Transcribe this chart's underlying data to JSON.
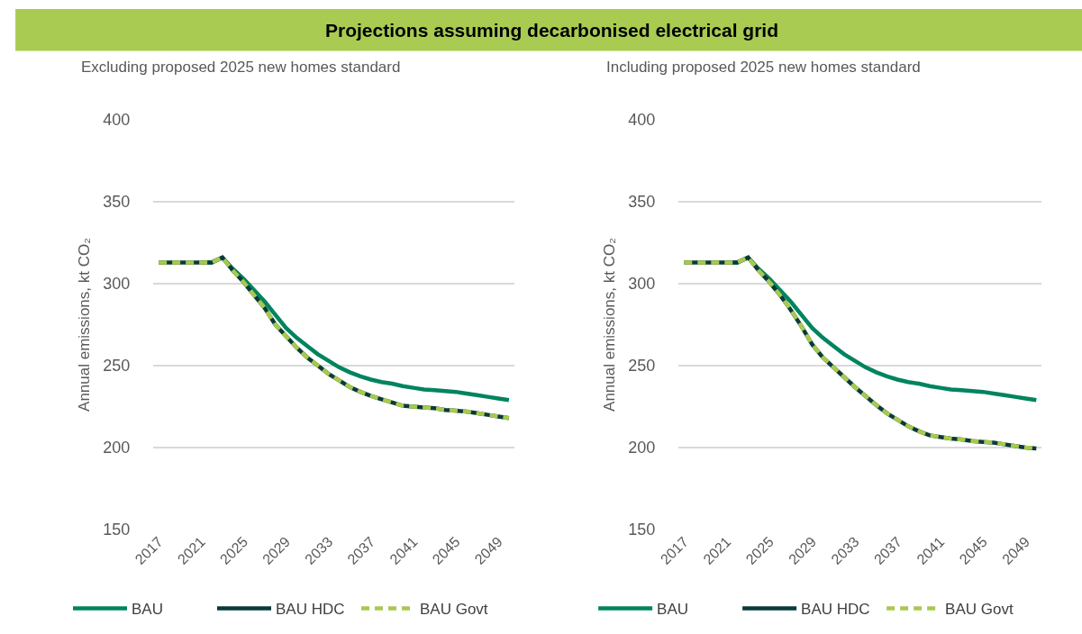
{
  "chart_data": [
    {
      "type": "line",
      "title": "Projections assuming decarbonised electrical grid",
      "subtitle": "Excluding proposed 2025 new homes standard",
      "ylabel": "Annual emissions, kt CO₂",
      "x": [
        2017,
        2018,
        2019,
        2020,
        2021,
        2022,
        2023,
        2024,
        2025,
        2026,
        2027,
        2028,
        2029,
        2030,
        2031,
        2032,
        2033,
        2034,
        2035,
        2036,
        2037,
        2038,
        2039,
        2040,
        2041,
        2042,
        2043,
        2044,
        2045,
        2046,
        2047,
        2048,
        2049,
        2050
      ],
      "xlim": [
        2016.5,
        2050.5
      ],
      "xticks": [
        2017,
        2021,
        2025,
        2029,
        2033,
        2037,
        2041,
        2045,
        2049
      ],
      "ylim": [
        150,
        400
      ],
      "yticks": [
        150,
        200,
        250,
        300,
        350,
        400
      ],
      "grid": "y",
      "legend": "bottom",
      "marker": "none",
      "series": [
        {
          "name": "BAU",
          "color": "#00845f",
          "line_style": "solid",
          "values": [
            null,
            null,
            null,
            null,
            313,
            313,
            316,
            309,
            303,
            296,
            289,
            281,
            273,
            267,
            262,
            257,
            253,
            249,
            246,
            243.5,
            241.5,
            240,
            239,
            237.5,
            236.5,
            235.5,
            235,
            234.5,
            234,
            233,
            232,
            231,
            230,
            229
          ]
        },
        {
          "name": "BAU HDC",
          "color": "#0a3a3a",
          "line_style": "solid",
          "values": [
            313,
            313,
            313,
            313,
            313,
            313,
            316,
            308,
            301,
            293,
            285,
            275,
            268,
            261,
            255,
            250,
            245,
            241,
            237,
            234,
            231.5,
            229.5,
            227.5,
            225.5,
            225,
            224.5,
            224,
            223,
            222.5,
            222,
            221,
            220,
            219,
            218
          ]
        },
        {
          "name": "BAU Govt",
          "color": "#a8c94f",
          "line_style": "dashed",
          "values": [
            313,
            313,
            313,
            313,
            313,
            313,
            316,
            308,
            301,
            293,
            285,
            275,
            268,
            261,
            255,
            250,
            245,
            241,
            237,
            234,
            231.5,
            229.5,
            227.5,
            225.5,
            225,
            224.5,
            224,
            223,
            222.5,
            222,
            221,
            220,
            219,
            218
          ]
        }
      ]
    },
    {
      "type": "line",
      "subtitle": "Including proposed 2025 new homes standard",
      "ylabel": "Annual emissions, kt CO₂",
      "x": [
        2017,
        2018,
        2019,
        2020,
        2021,
        2022,
        2023,
        2024,
        2025,
        2026,
        2027,
        2028,
        2029,
        2030,
        2031,
        2032,
        2033,
        2034,
        2035,
        2036,
        2037,
        2038,
        2039,
        2040,
        2041,
        2042,
        2043,
        2044,
        2045,
        2046,
        2047,
        2048,
        2049,
        2050
      ],
      "xlim": [
        2016.5,
        2050.5
      ],
      "xticks": [
        2017,
        2021,
        2025,
        2029,
        2033,
        2037,
        2041,
        2045,
        2049
      ],
      "ylim": [
        150,
        400
      ],
      "yticks": [
        150,
        200,
        250,
        300,
        350,
        400
      ],
      "grid": "y",
      "legend": "bottom",
      "marker": "none",
      "series": [
        {
          "name": "BAU",
          "color": "#00845f",
          "line_style": "solid",
          "values": [
            null,
            null,
            null,
            null,
            313,
            313,
            316,
            309,
            303,
            296,
            289,
            281,
            273,
            267,
            262,
            257,
            253,
            249,
            246,
            243.5,
            241.5,
            240,
            239,
            237.5,
            236.5,
            235.5,
            235,
            234.5,
            234,
            233,
            232,
            231,
            230,
            229
          ]
        },
        {
          "name": "BAU HDC",
          "color": "#0a3a3a",
          "line_style": "solid",
          "values": [
            313,
            313,
            313,
            313,
            313,
            313,
            316,
            308,
            301,
            293,
            284,
            274,
            263,
            255,
            249,
            243,
            237,
            231.5,
            226,
            221,
            217,
            213,
            210,
            207.5,
            206.5,
            205.5,
            205,
            204,
            203.5,
            203,
            202,
            201,
            200,
            199.5
          ]
        },
        {
          "name": "BAU Govt",
          "color": "#a8c94f",
          "line_style": "dashed",
          "values": [
            313,
            313,
            313,
            313,
            313,
            313,
            316,
            308,
            301,
            293,
            284,
            274,
            263,
            255,
            249,
            243,
            237,
            231.5,
            226,
            221,
            217,
            213,
            210,
            207.5,
            206.5,
            205.5,
            205,
            204,
            203.5,
            203,
            202,
            201,
            200,
            199.5
          ]
        }
      ]
    }
  ]
}
